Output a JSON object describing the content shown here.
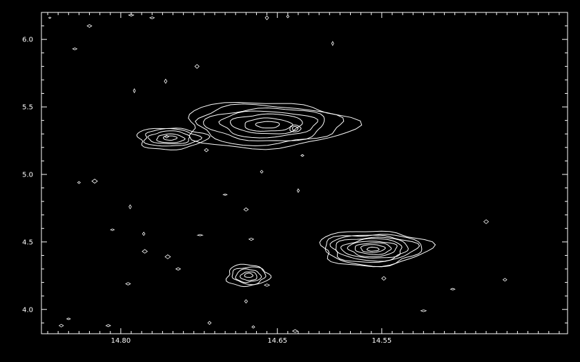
{
  "chart_data": {
    "type": "contour",
    "title": "",
    "xlabel": "",
    "ylabel": "",
    "xlim": [
      14.876,
      14.372
    ],
    "ylim": [
      3.82,
      6.2
    ],
    "x_ticks": [
      {
        "value": 14.65,
        "label": "14.65"
      },
      {
        "value": 14.8,
        "label": "14.80"
      },
      {
        "value": 14.55,
        "label": "14.55"
      }
    ],
    "y_ticks": [
      {
        "value": 4.0,
        "label": "4.0"
      },
      {
        "value": 4.5,
        "label": "4.5"
      },
      {
        "value": 5.0,
        "label": "5.0"
      },
      {
        "value": 5.5,
        "label": "5.5"
      },
      {
        "value": 6.0,
        "label": "6.0"
      }
    ],
    "grid": false,
    "colors": {
      "background": "#000000",
      "foreground": "#ffffff"
    },
    "sources": [
      {
        "name": "source-1",
        "x": 14.66,
        "y": 5.37,
        "rx": 0.08,
        "ry": 0.17,
        "levels": 7,
        "peaks": [
          {
            "x": 14.633,
            "y": 5.34
          }
        ]
      },
      {
        "name": "source-2",
        "x": 14.753,
        "y": 5.27,
        "rx": 0.033,
        "ry": 0.08,
        "levels": 5,
        "peaks": []
      },
      {
        "name": "source-3",
        "x": 14.559,
        "y": 4.45,
        "rx": 0.052,
        "ry": 0.13,
        "levels": 9,
        "peaks": []
      },
      {
        "name": "source-4",
        "x": 14.678,
        "y": 4.25,
        "rx": 0.02,
        "ry": 0.08,
        "levels": 5,
        "peaks": []
      }
    ],
    "specks": [
      [
        14.868,
        6.16
      ],
      [
        14.844,
        5.93
      ],
      [
        14.83,
        6.1
      ],
      [
        14.77,
        6.16
      ],
      [
        14.79,
        6.18
      ],
      [
        14.66,
        6.16
      ],
      [
        14.64,
        6.17
      ],
      [
        14.597,
        5.97
      ],
      [
        14.727,
        5.8
      ],
      [
        14.787,
        5.62
      ],
      [
        14.757,
        5.69
      ],
      [
        14.718,
        5.18
      ],
      [
        14.626,
        5.14
      ],
      [
        14.665,
        5.02
      ],
      [
        14.63,
        4.88
      ],
      [
        14.68,
        4.74
      ],
      [
        14.7,
        4.85
      ],
      [
        14.791,
        4.76
      ],
      [
        14.778,
        4.56
      ],
      [
        14.724,
        4.55
      ],
      [
        14.777,
        4.43
      ],
      [
        14.755,
        4.39
      ],
      [
        14.793,
        4.19
      ],
      [
        14.68,
        4.06
      ],
      [
        14.66,
        4.18
      ],
      [
        14.673,
        3.87
      ],
      [
        14.633,
        3.84
      ],
      [
        14.715,
        3.9
      ],
      [
        14.812,
        3.88
      ],
      [
        14.745,
        4.3
      ],
      [
        14.84,
        4.94
      ],
      [
        14.825,
        4.95
      ],
      [
        14.548,
        4.23
      ],
      [
        14.51,
        3.99
      ],
      [
        14.482,
        4.15
      ],
      [
        14.432,
        4.22
      ],
      [
        14.45,
        4.65
      ],
      [
        14.808,
        4.59
      ],
      [
        14.85,
        3.93
      ],
      [
        14.857,
        3.88
      ],
      [
        14.756,
        5.28
      ],
      [
        14.675,
        4.52
      ]
    ]
  }
}
